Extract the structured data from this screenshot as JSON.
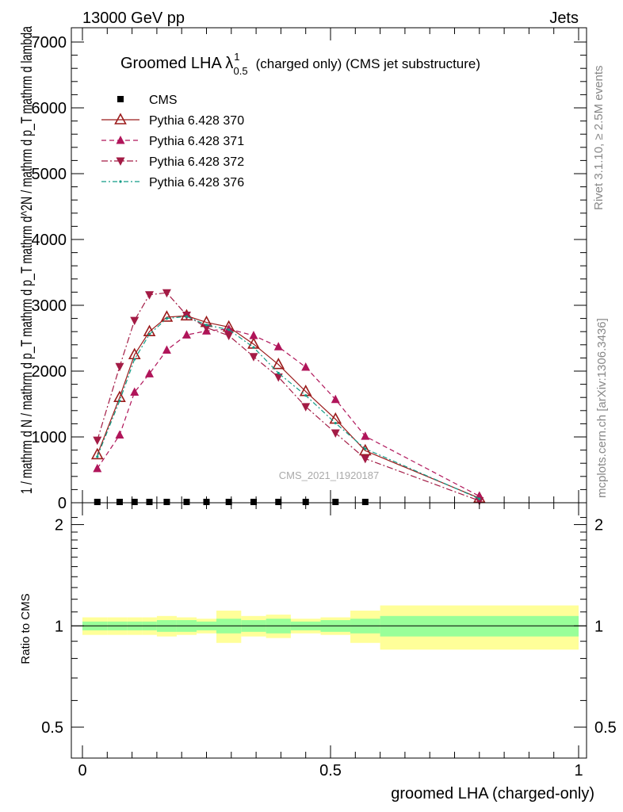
{
  "header": {
    "left": "13000 GeV pp",
    "right": "Jets"
  },
  "side_labels": {
    "rivet": "Rivet 3.1.10, ≥ 2.5M events",
    "mcplots": "mcplots.cern.ch [arXiv:1306.3436]"
  },
  "watermark": "CMS_2021_I1920187",
  "title": {
    "main": "Groomed LHA λ",
    "sup": "1",
    "sub": "0.5",
    "rest": "(charged only) (CMS jet substructure)"
  },
  "colors": {
    "p370": "#9b1b1b",
    "p371": "#b0155a",
    "p372": "#a31b45",
    "p376": "#129c86",
    "band_inner": "#99ff99",
    "band_outer": "#ffff99"
  },
  "chart_data": [
    {
      "type": "line",
      "title": "Groomed LHA λ^1_0.5 (charged only) (CMS jet substructure)",
      "ylabel": "1 / mathrm d N / mathrm d p_T mathrm d p_T mathrm d^2N / mathrm d p_T mathrm d lambda",
      "xlabel": "",
      "xlim": [
        0,
        1
      ],
      "ylim": [
        0,
        7000
      ],
      "y_ticks": [
        {
          "v": 0,
          "label": "0"
        },
        {
          "v": 1000,
          "label": "1000"
        },
        {
          "v": 2000,
          "label": "2000"
        },
        {
          "v": 3000,
          "label": "3000"
        },
        {
          "v": 4000,
          "label": "4000"
        },
        {
          "v": 5000,
          "label": "5000"
        },
        {
          "v": 6000,
          "label": "6000"
        },
        {
          "v": 7000,
          "label": "7000"
        }
      ],
      "legend_position": "top-left",
      "series": [
        {
          "name": "CMS",
          "marker": "square",
          "x": [
            0.03,
            0.075,
            0.105,
            0.135,
            0.17,
            0.21,
            0.25,
            0.295,
            0.345,
            0.395,
            0.45,
            0.51,
            0.57
          ],
          "y": [
            5,
            5,
            5,
            5,
            5,
            5,
            5,
            5,
            5,
            5,
            5,
            5,
            5
          ]
        },
        {
          "name": "Pythia 6.428 370",
          "marker": "triangle-up-open",
          "dash": "",
          "x": [
            0.03,
            0.075,
            0.105,
            0.135,
            0.17,
            0.21,
            0.25,
            0.295,
            0.345,
            0.395,
            0.45,
            0.51,
            0.57,
            0.8
          ],
          "y": [
            730,
            1600,
            2250,
            2600,
            2820,
            2840,
            2740,
            2670,
            2410,
            2100,
            1690,
            1270,
            790,
            70
          ]
        },
        {
          "name": "Pythia 6.428 371",
          "marker": "triangle-up",
          "dash": "6,4",
          "x": [
            0.03,
            0.075,
            0.105,
            0.135,
            0.17,
            0.21,
            0.25,
            0.295,
            0.345,
            0.395,
            0.45,
            0.51,
            0.57,
            0.8
          ],
          "y": [
            520,
            1030,
            1680,
            1960,
            2320,
            2550,
            2610,
            2640,
            2540,
            2370,
            2060,
            1570,
            1010,
            100
          ]
        },
        {
          "name": "Pythia 6.428 372",
          "marker": "triangle-down",
          "dash": "8,3,2,3",
          "x": [
            0.03,
            0.075,
            0.105,
            0.135,
            0.17,
            0.21,
            0.25,
            0.295,
            0.345,
            0.395,
            0.45,
            0.51,
            0.57,
            0.8
          ],
          "y": [
            950,
            2070,
            2770,
            3160,
            3190,
            2850,
            2660,
            2540,
            2220,
            1910,
            1460,
            1060,
            670,
            30
          ]
        },
        {
          "name": "Pythia 6.428 376",
          "marker": "dot",
          "dash": "6,3,2,3",
          "x": [
            0.03,
            0.075,
            0.105,
            0.135,
            0.17,
            0.21,
            0.25,
            0.295,
            0.345,
            0.395,
            0.45,
            0.51,
            0.57,
            0.8
          ],
          "y": [
            700,
            1550,
            2180,
            2560,
            2800,
            2830,
            2700,
            2630,
            2360,
            1970,
            1630,
            1210,
            820,
            60
          ]
        }
      ]
    },
    {
      "type": "area",
      "ylabel": "Ratio to CMS",
      "xlabel": "groomed LHA (charged-only)",
      "xlim": [
        0,
        1
      ],
      "ylim": [
        0.5,
        2.2
      ],
      "x_ticks": [
        {
          "v": 0,
          "label": "0"
        },
        {
          "v": 0.5,
          "label": "0.5"
        },
        {
          "v": 1,
          "label": "1"
        }
      ],
      "y_ticks": [
        {
          "v": 0.5,
          "label": "0.5"
        },
        {
          "v": 1,
          "label": "1"
        },
        {
          "v": 2,
          "label": "2"
        }
      ],
      "reference_line": 1,
      "bins": [
        0,
        0.05,
        0.09,
        0.12,
        0.15,
        0.19,
        0.23,
        0.27,
        0.32,
        0.37,
        0.42,
        0.48,
        0.54,
        0.6,
        1.0
      ],
      "band_inner": {
        "low": [
          0.97,
          0.97,
          0.97,
          0.97,
          0.96,
          0.96,
          0.97,
          0.95,
          0.96,
          0.95,
          0.97,
          0.96,
          0.95,
          0.93
        ],
        "high": [
          1.03,
          1.03,
          1.03,
          1.03,
          1.04,
          1.04,
          1.03,
          1.05,
          1.04,
          1.05,
          1.03,
          1.04,
          1.05,
          1.07
        ]
      },
      "band_outer": {
        "low": [
          0.94,
          0.94,
          0.94,
          0.94,
          0.93,
          0.94,
          0.95,
          0.89,
          0.93,
          0.92,
          0.95,
          0.94,
          0.89,
          0.85
        ],
        "high": [
          1.06,
          1.06,
          1.06,
          1.06,
          1.07,
          1.06,
          1.05,
          1.11,
          1.07,
          1.08,
          1.05,
          1.06,
          1.11,
          1.15
        ]
      }
    }
  ]
}
